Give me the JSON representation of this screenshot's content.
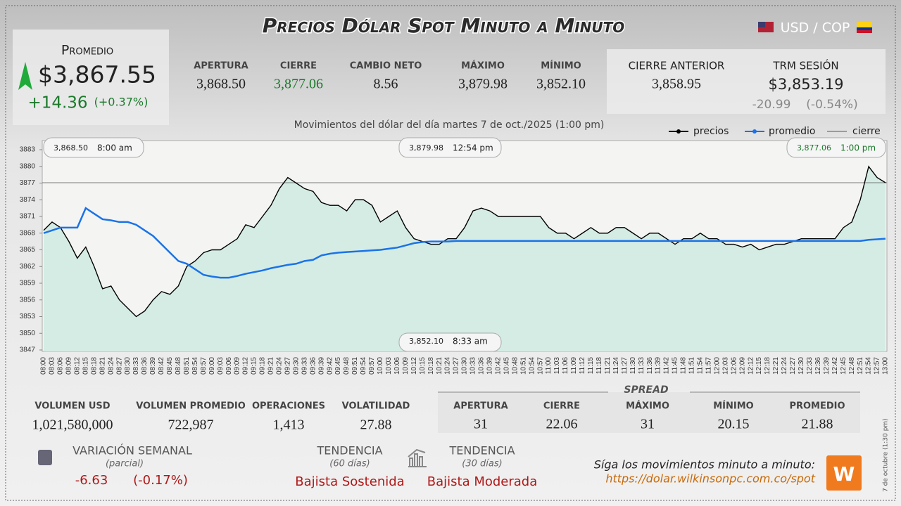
{
  "header": {
    "title": "Precios Dólar Spot Minuto a Minuto",
    "pair": "USD / COP"
  },
  "promedio": {
    "label": "Promedio",
    "value": "$3,867.55",
    "change": "+14.36",
    "change_pct": "(+0.37%)"
  },
  "stats": [
    {
      "label": "APERTURA",
      "value": "3,868.50"
    },
    {
      "label": "CIERRE",
      "value": "3,877.06"
    },
    {
      "label": "CAMBIO NETO",
      "value": "8.56"
    },
    {
      "label": "MÁXIMO",
      "value": "3,879.98"
    },
    {
      "label": "MÍNIMO",
      "value": "3,852.10"
    }
  ],
  "cierre_anterior": {
    "label": "CIERRE ANTERIOR",
    "value": "3,858.95"
  },
  "trm": {
    "label": "TRM SESIÓN",
    "value": "$3,853.19",
    "change": "-20.99",
    "change_pct": "(-0.54%)"
  },
  "chart_data": {
    "type": "line",
    "title": "Movimientos del dólar del día martes 7 de oct./2025 (1:00 pm)",
    "categories": [
      "08:00",
      "08:03",
      "08:06",
      "08:09",
      "08:12",
      "08:15",
      "08:18",
      "08:21",
      "08:24",
      "08:27",
      "08:30",
      "08:33",
      "08:36",
      "08:39",
      "08:42",
      "08:45",
      "08:48",
      "08:51",
      "08:54",
      "08:57",
      "09:00",
      "09:03",
      "09:06",
      "09:09",
      "09:12",
      "09:15",
      "09:18",
      "09:21",
      "09:24",
      "09:27",
      "09:30",
      "09:33",
      "09:36",
      "09:39",
      "09:42",
      "09:45",
      "09:48",
      "09:51",
      "09:54",
      "09:57",
      "10:00",
      "10:03",
      "10:06",
      "10:09",
      "10:12",
      "10:15",
      "10:18",
      "10:21",
      "10:24",
      "10:27",
      "10:30",
      "10:33",
      "10:36",
      "10:39",
      "10:42",
      "10:45",
      "10:48",
      "10:51",
      "10:54",
      "10:57",
      "11:00",
      "11:03",
      "11:06",
      "11:09",
      "11:12",
      "11:15",
      "11:18",
      "11:21",
      "11:24",
      "11:27",
      "11:30",
      "11:33",
      "11:36",
      "11:39",
      "11:42",
      "11:45",
      "11:48",
      "11:51",
      "11:54",
      "11:57",
      "12:00",
      "12:03",
      "12:06",
      "12:09",
      "12:12",
      "12:15",
      "12:18",
      "12:21",
      "12:24",
      "12:27",
      "12:30",
      "12:33",
      "12:36",
      "12:39",
      "12:42",
      "12:45",
      "12:48",
      "12:51",
      "12:54",
      "12:57",
      "13:00"
    ],
    "series": [
      {
        "name": "precios",
        "color": "#000000",
        "values": [
          3868.5,
          3870,
          3869,
          3866.5,
          3863.5,
          3865.5,
          3862,
          3858,
          3858.5,
          3856,
          3854.5,
          3853,
          3854,
          3856,
          3857.5,
          3857,
          3858.5,
          3862,
          3863,
          3864.5,
          3865,
          3865,
          3866,
          3867,
          3869.5,
          3869,
          3871,
          3873,
          3876,
          3878,
          3877,
          3876,
          3875.5,
          3873.5,
          3873,
          3873,
          3872,
          3874,
          3874,
          3873,
          3870,
          3871,
          3872,
          3869,
          3867,
          3866.5,
          3866,
          3866,
          3867,
          3867,
          3869,
          3872,
          3872.5,
          3872,
          3871,
          3871,
          3871,
          3871,
          3871,
          3871,
          3869,
          3868,
          3868,
          3867,
          3868,
          3869,
          3868,
          3868,
          3869,
          3869,
          3868,
          3867,
          3868,
          3868,
          3867,
          3866,
          3867,
          3867,
          3868,
          3867,
          3867,
          3866,
          3866,
          3865.5,
          3866,
          3865,
          3865.5,
          3866,
          3866,
          3866.5,
          3867,
          3867,
          3867,
          3867,
          3867,
          3869,
          3870,
          3874,
          3879.98,
          3878,
          3877.06
        ]
      },
      {
        "name": "promedio",
        "color": "#1a73e8",
        "values": [
          3868,
          3868.5,
          3869,
          3869,
          3869,
          3872.5,
          3871.5,
          3870.5,
          3870.3,
          3870,
          3870,
          3869.5,
          3868.5,
          3867.5,
          3866,
          3864.5,
          3863,
          3862.5,
          3861.5,
          3860.5,
          3860.2,
          3860,
          3860,
          3860.3,
          3860.7,
          3861,
          3861.3,
          3861.7,
          3862,
          3862.3,
          3862.5,
          3863,
          3863.2,
          3864,
          3864.3,
          3864.5,
          3864.6,
          3864.7,
          3864.8,
          3864.9,
          3865,
          3865.2,
          3865.4,
          3865.8,
          3866.2,
          3866.4,
          3866.5,
          3866.5,
          3866.5,
          3866.6,
          3866.6,
          3866.6,
          3866.6,
          3866.6,
          3866.6,
          3866.6,
          3866.6,
          3866.6,
          3866.6,
          3866.6,
          3866.6,
          3866.6,
          3866.6,
          3866.6,
          3866.6,
          3866.6,
          3866.6,
          3866.6,
          3866.6,
          3866.6,
          3866.6,
          3866.6,
          3866.6,
          3866.6,
          3866.6,
          3866.6,
          3866.6,
          3866.6,
          3866.6,
          3866.6,
          3866.6,
          3866.6,
          3866.6,
          3866.6,
          3866.6,
          3866.6,
          3866.6,
          3866.6,
          3866.6,
          3866.6,
          3866.6,
          3866.6,
          3866.6,
          3866.6,
          3866.6,
          3866.6,
          3866.6,
          3866.6,
          3866.8,
          3866.9,
          3867
        ]
      }
    ],
    "reference": {
      "name": "cierre",
      "color": "#555555",
      "value": 3877.06
    },
    "ylim": [
      3847,
      3883
    ],
    "yticks": [
      3847,
      3850,
      3853,
      3856,
      3859,
      3862,
      3865,
      3868,
      3871,
      3874,
      3877,
      3880,
      3883
    ],
    "fill_color": "#d4ece4",
    "annotations": [
      {
        "price": "3,868.50",
        "time": "8:00 am"
      },
      {
        "price": "3,879.98",
        "time": "12:54 pm"
      },
      {
        "price": "3,877.06",
        "time": "1:00 pm"
      },
      {
        "price": "3,852.10",
        "time": "8:33 am"
      }
    ]
  },
  "bottom_stats": [
    {
      "label": "VOLUMEN USD",
      "value": "1,021,580,000"
    },
    {
      "label": "VOLUMEN PROMEDIO",
      "value": "722,987"
    },
    {
      "label": "OPERACIONES",
      "value": "1,413"
    },
    {
      "label": "VOLATILIDAD",
      "value": "27.88"
    }
  ],
  "spread": {
    "title": "SPREAD",
    "items": [
      {
        "label": "APERTURA",
        "value": "31"
      },
      {
        "label": "CIERRE",
        "value": "22.06"
      },
      {
        "label": "MÁXIMO",
        "value": "31"
      },
      {
        "label": "MÍNIMO",
        "value": "20.15"
      },
      {
        "label": "PROMEDIO",
        "value": "21.88"
      }
    ]
  },
  "variacion": {
    "label": "VARIACIÓN SEMANAL",
    "note": "(parcial)",
    "value": "-6.63",
    "pct": "(-0.17%)"
  },
  "tendencias": [
    {
      "label": "TENDENCIA",
      "note": "(60 días)",
      "value": "Bajista Sostenida"
    },
    {
      "label": "TENDENCIA",
      "note": "(30 días)",
      "value": "Bajista Moderada"
    }
  ],
  "footer": {
    "text": "Síga los movimientos minuto a minuto:",
    "url": "https://dolar.wilkinsonpc.com.co/spot",
    "side_note": "7 de octubre (1:30 pm)"
  }
}
